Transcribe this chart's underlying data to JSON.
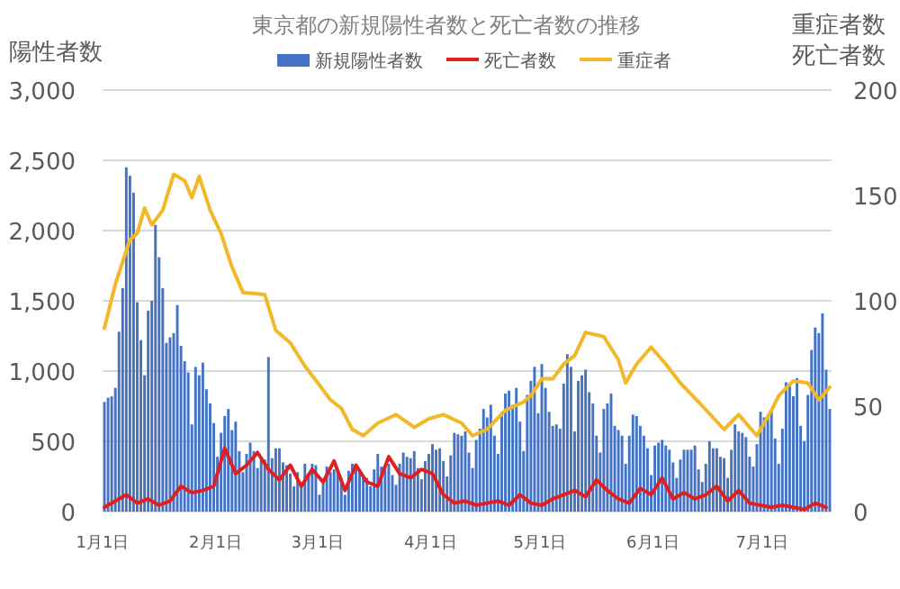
{
  "chart_data": {
    "type": "bar",
    "title": "東京都の新規陽性者数と死亡者数の推移",
    "ylabel": "陽性者数",
    "y2label": "重症者数死亡者数",
    "legend": "top",
    "grid": "y",
    "xlim": [
      "--01-01",
      "--07-20"
    ],
    "xticks": [
      {
        "value": "--01-01",
        "label": "1月1日"
      },
      {
        "value": "--02-01",
        "label": "2月1日"
      },
      {
        "value": "--03-01",
        "label": "3月1日"
      },
      {
        "value": "--04-01",
        "label": "4月1日"
      },
      {
        "value": "--05-01",
        "label": "5月1日"
      },
      {
        "value": "--06-01",
        "label": "6月1日"
      },
      {
        "value": "--07-01",
        "label": "7月1日"
      }
    ],
    "ylim": [
      0,
      3000
    ],
    "yticks": [
      0,
      500,
      {
        "value": 1000,
        "label": "1,000"
      },
      {
        "value": 1500,
        "label": "1,500"
      },
      {
        "value": 2000,
        "label": "2,000"
      },
      {
        "value": 2500,
        "label": "2,500"
      },
      {
        "value": 3000,
        "label": "3,000"
      }
    ],
    "y2lim": [
      0,
      200
    ],
    "y2ticks": [
      0,
      50,
      100,
      150,
      200
    ],
    "x": [
      "--01-01",
      "--01-02",
      "--01-03",
      "--01-04",
      "--01-05",
      "--01-06",
      "--01-07",
      "--01-08",
      "--01-09",
      "--01-10",
      "--01-11",
      "--01-12",
      "--01-13",
      "--01-14",
      "--01-15",
      "--01-16",
      "--01-17",
      "--01-18",
      "--01-19",
      "--01-20",
      "--01-21",
      "--01-22",
      "--01-23",
      "--01-24",
      "--01-25",
      "--01-26",
      "--01-27",
      "--01-28",
      "--01-29",
      "--01-30",
      "--01-31",
      "--02-01",
      "--02-02",
      "--02-03",
      "--02-04",
      "--02-05",
      "--02-06",
      "--02-07",
      "--02-08",
      "--02-09",
      "--02-10",
      "--02-11",
      "--02-12",
      "--02-13",
      "--02-14",
      "--02-15",
      "--02-16",
      "--02-17",
      "--02-18",
      "--02-19",
      "--02-20",
      "--02-21",
      "--02-22",
      "--02-23",
      "--02-24",
      "--02-25",
      "--02-26",
      "--02-27",
      "--02-28",
      "--03-01",
      "--03-02",
      "--03-03",
      "--03-04",
      "--03-05",
      "--03-06",
      "--03-07",
      "--03-08",
      "--03-09",
      "--03-10",
      "--03-11",
      "--03-12",
      "--03-13",
      "--03-14",
      "--03-15",
      "--03-16",
      "--03-17",
      "--03-18",
      "--03-19",
      "--03-20",
      "--03-21",
      "--03-22",
      "--03-23",
      "--03-24",
      "--03-25",
      "--03-26",
      "--03-27",
      "--03-28",
      "--03-29",
      "--03-30",
      "--03-31",
      "--04-01",
      "--04-02",
      "--04-03",
      "--04-04",
      "--04-05",
      "--04-06",
      "--04-07",
      "--04-08",
      "--04-09",
      "--04-10",
      "--04-11",
      "--04-12",
      "--04-13",
      "--04-14",
      "--04-15",
      "--04-16",
      "--04-17",
      "--04-18",
      "--04-19",
      "--04-20",
      "--04-21",
      "--04-22",
      "--04-23",
      "--04-24",
      "--04-25",
      "--04-26",
      "--04-27",
      "--04-28",
      "--04-29",
      "--04-30",
      "--05-01",
      "--05-02",
      "--05-03",
      "--05-04",
      "--05-05",
      "--05-06",
      "--05-07",
      "--05-08",
      "--05-09",
      "--05-10",
      "--05-11",
      "--05-12",
      "--05-13",
      "--05-14",
      "--05-15",
      "--05-16",
      "--05-17",
      "--05-18",
      "--05-19",
      "--05-20",
      "--05-21",
      "--05-22",
      "--05-23",
      "--05-24",
      "--05-25",
      "--05-26",
      "--05-27",
      "--05-28",
      "--05-29",
      "--05-30",
      "--05-31",
      "--06-01",
      "--06-02",
      "--06-03",
      "--06-04",
      "--06-05",
      "--06-06",
      "--06-07",
      "--06-08",
      "--06-09",
      "--06-10",
      "--06-11",
      "--06-12",
      "--06-13",
      "--06-14",
      "--06-15",
      "--06-16",
      "--06-17",
      "--06-18",
      "--06-19",
      "--06-20",
      "--06-21",
      "--06-22",
      "--06-23",
      "--06-24",
      "--06-25",
      "--06-26",
      "--06-27",
      "--06-28",
      "--06-29",
      "--06-30",
      "--07-01",
      "--07-02",
      "--07-03",
      "--07-04",
      "--07-05",
      "--07-06",
      "--07-07",
      "--07-08",
      "--07-09",
      "--07-10",
      "--07-11",
      "--07-12",
      "--07-13",
      "--07-14",
      "--07-15",
      "--07-16",
      "--07-17",
      "--07-18",
      "--07-19"
    ],
    "series": [
      {
        "name": "新規陽性者数",
        "color": "#4472c4",
        "values": [
          780,
          810,
          820,
          880,
          1280,
          1590,
          2450,
          2390,
          2270,
          1490,
          1220,
          970,
          1430,
          1500,
          2040,
          1810,
          1590,
          1200,
          1240,
          1270,
          1470,
          1180,
          1070,
          990,
          620,
          1030,
          970,
          1060,
          870,
          770,
          630,
          390,
          560,
          680,
          730,
          580,
          640,
          430,
          280,
          410,
          490,
          430,
          310,
          370,
          370,
          1100,
          380,
          450,
          450,
          350,
          330,
          270,
          180,
          280,
          210,
          340,
          270,
          340,
          330,
          120,
          230,
          320,
          280,
          300,
          290,
          240,
          120,
          290,
          340,
          340,
          300,
          240,
          240,
          180,
          300,
          410,
          320,
          300,
          340,
          260,
          190,
          340,
          420,
          390,
          380,
          430,
          310,
          230,
          360,
          410,
          480,
          440,
          450,
          360,
          250,
          400,
          560,
          550,
          540,
          570,
          420,
          310,
          510,
          590,
          730,
          670,
          760,
          540,
          410,
          710,
          840,
          860,
          760,
          880,
          640,
          430,
          830,
          930,
          1030,
          700,
          1050,
          880,
          710,
          610,
          620,
          590,
          910,
          1120,
          1030,
          570,
          930,
          970,
          1010,
          850,
          770,
          540,
          420,
          730,
          770,
          840,
          610,
          580,
          540,
          340,
          540,
          690,
          680,
          610,
          540,
          450,
          260,
          470,
          490,
          510,
          470,
          440,
          350,
          240,
          370,
          440,
          440,
          440,
          470,
          300,
          210,
          340,
          500,
          450,
          450,
          390,
          380,
          240,
          440,
          620,
          570,
          560,
          530,
          390,
          320,
          480,
          710,
          670,
          660,
          720,
          520,
          340,
          590,
          920,
          900,
          820,
          950,
          610,
          500,
          830,
          1150,
          1310,
          1270,
          1410,
          1010,
          730
        ]
      },
      {
        "name": "死亡者数",
        "type": "line",
        "axis": "y2",
        "color": "#e02020",
        "x": [
          "--01-01",
          "--01-04",
          "--01-07",
          "--01-10",
          "--01-13",
          "--01-16",
          "--01-19",
          "--01-22",
          "--01-25",
          "--01-28",
          "--01-31",
          "--02-03",
          "--02-06",
          "--02-09",
          "--02-12",
          "--02-15",
          "--02-18",
          "--02-21",
          "--02-24",
          "--02-27",
          "--03-02",
          "--03-05",
          "--03-08",
          "--03-11",
          "--03-14",
          "--03-17",
          "--03-20",
          "--03-23",
          "--03-26",
          "--03-29",
          "--04-01",
          "--04-04",
          "--04-07",
          "--04-10",
          "--04-13",
          "--04-16",
          "--04-19",
          "--04-22",
          "--04-25",
          "--04-28",
          "--05-01",
          "--05-04",
          "--05-07",
          "--05-10",
          "--05-13",
          "--05-16",
          "--05-19",
          "--05-22",
          "--05-25",
          "--05-28",
          "--05-31",
          "--06-03",
          "--06-06",
          "--06-09",
          "--06-12",
          "--06-15",
          "--06-18",
          "--06-21",
          "--06-24",
          "--06-27",
          "--06-30",
          "--07-03",
          "--07-06",
          "--07-09",
          "--07-12",
          "--07-15",
          "--07-18"
        ],
        "values": [
          2,
          5,
          8,
          4,
          6,
          3,
          5,
          12,
          9,
          10,
          12,
          30,
          18,
          22,
          28,
          20,
          15,
          22,
          12,
          20,
          14,
          24,
          10,
          22,
          14,
          12,
          26,
          18,
          16,
          20,
          18,
          8,
          4,
          5,
          3,
          4,
          5,
          3,
          8,
          4,
          3,
          6,
          8,
          10,
          7,
          15,
          10,
          6,
          4,
          11,
          8,
          16,
          6,
          9,
          6,
          8,
          12,
          5,
          10,
          4,
          3,
          2,
          3,
          2,
          1,
          4,
          2
        ]
      },
      {
        "name": "重症者",
        "type": "line",
        "axis": "y2",
        "color": "#f2b827",
        "x": [
          "--01-01",
          "--01-04",
          "--01-08",
          "--01-10",
          "--01-12",
          "--01-14",
          "--01-17",
          "--01-20",
          "--01-23",
          "--01-25",
          "--01-27",
          "--01-30",
          "--02-02",
          "--02-05",
          "--02-08",
          "--02-14",
          "--02-17",
          "--02-21",
          "--02-25",
          "--03-01",
          "--03-04",
          "--03-07",
          "--03-10",
          "--03-13",
          "--03-17",
          "--03-22",
          "--03-27",
          "--03-31",
          "--04-04",
          "--04-09",
          "--04-12",
          "--04-16",
          "--04-21",
          "--04-26",
          "--04-28",
          "--05-01",
          "--05-04",
          "--05-07",
          "--05-10",
          "--05-13",
          "--05-18",
          "--05-22",
          "--05-24",
          "--05-27",
          "--05-31",
          "--06-04",
          "--06-08",
          "--06-13",
          "--06-20",
          "--06-24",
          "--06-29",
          "--07-03",
          "--07-05",
          "--07-09",
          "--07-13",
          "--07-16",
          "--07-19"
        ],
        "values": [
          87,
          108,
          129,
          132,
          144,
          136,
          143,
          160,
          157,
          149,
          159,
          143,
          132,
          116,
          104,
          103,
          86,
          80,
          69,
          60,
          53,
          49,
          39,
          36,
          42,
          46,
          40,
          44,
          46,
          42,
          36,
          39,
          48,
          52,
          55,
          63,
          63,
          70,
          74,
          85,
          83,
          72,
          61,
          70,
          78,
          70,
          61,
          52,
          39,
          46,
          36,
          48,
          55,
          62,
          61,
          53,
          59
        ]
      }
    ]
  }
}
